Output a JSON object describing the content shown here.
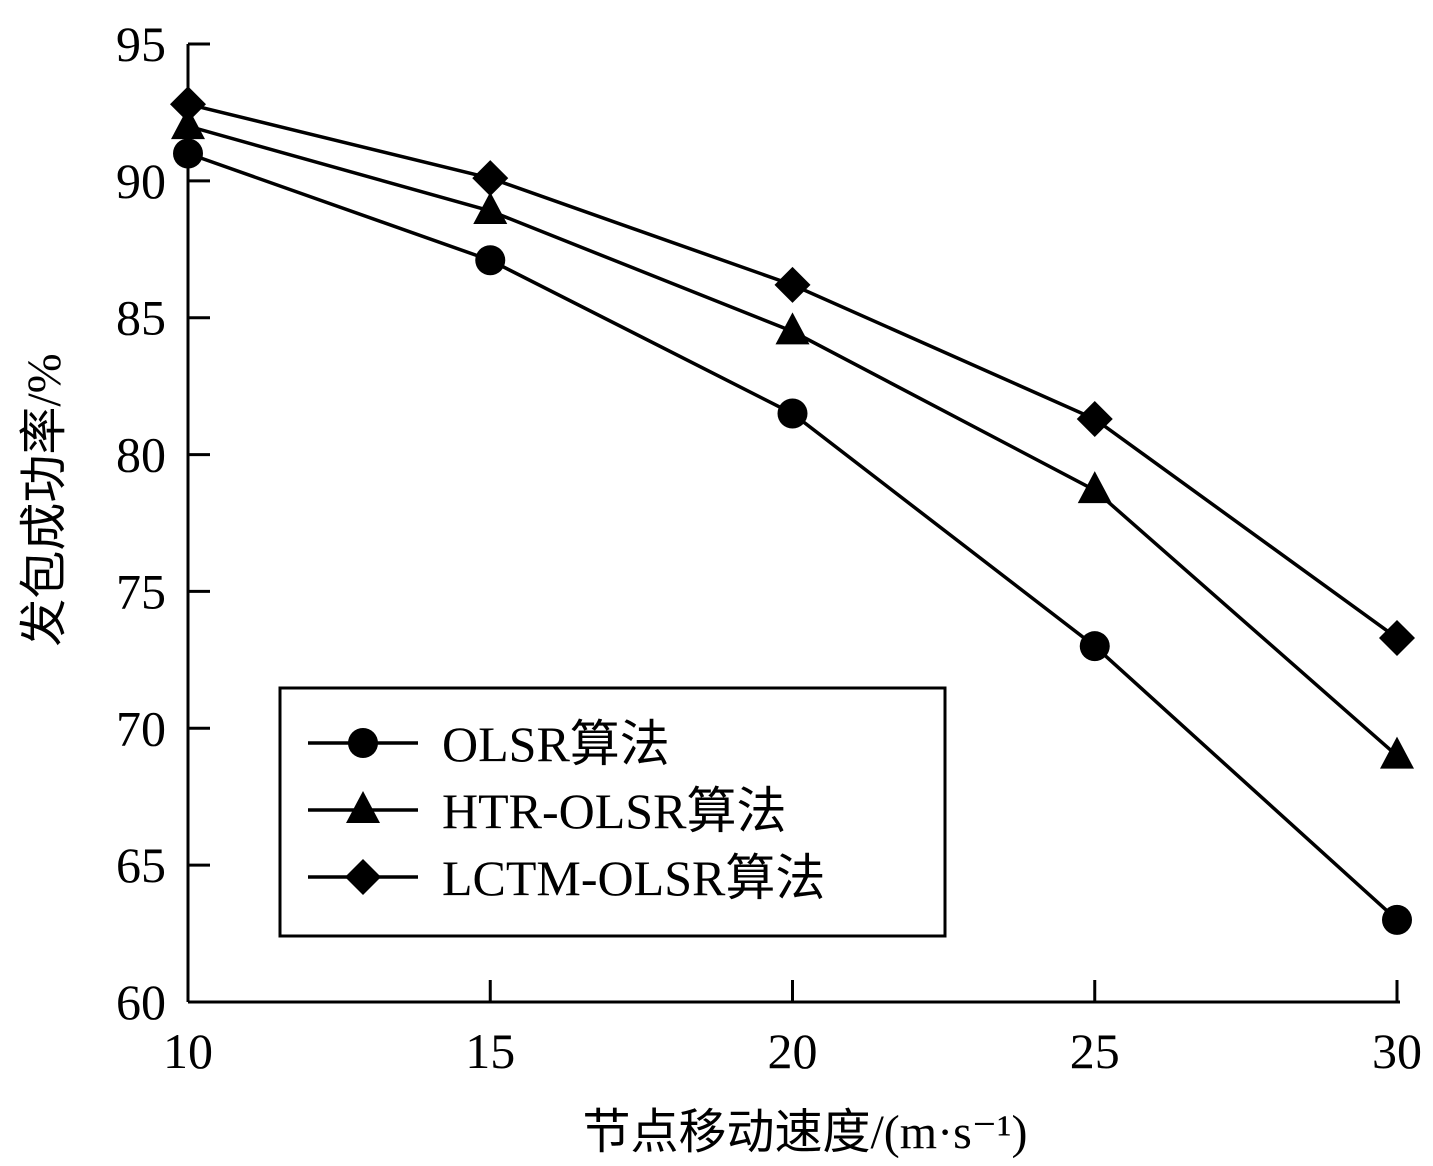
{
  "chart_data": {
    "type": "line",
    "x": [
      10,
      15,
      20,
      25,
      30
    ],
    "xlim": [
      10,
      30
    ],
    "ylim": [
      60,
      95
    ],
    "xticks": [
      "10",
      "15",
      "20",
      "25",
      "30"
    ],
    "yticks": [
      "60",
      "65",
      "70",
      "75",
      "80",
      "85",
      "90",
      "95"
    ],
    "xlabel": "节点移动速度/(m·s⁻¹)",
    "ylabel": "发包成功率/%",
    "grid": false,
    "legend_position": "bottom-left",
    "series": [
      {
        "name": "OLSR算法",
        "marker": "circle",
        "values": [
          91,
          87.1,
          81.5,
          73,
          63
        ]
      },
      {
        "name": "HTR-OLSR算法",
        "marker": "triangle",
        "values": [
          92,
          88.9,
          84.5,
          78.7,
          69
        ]
      },
      {
        "name": "LCTM-OLSR算法",
        "marker": "diamond",
        "values": [
          92.8,
          90.1,
          86.2,
          81.3,
          73.3
        ]
      }
    ],
    "color": "#000000"
  }
}
